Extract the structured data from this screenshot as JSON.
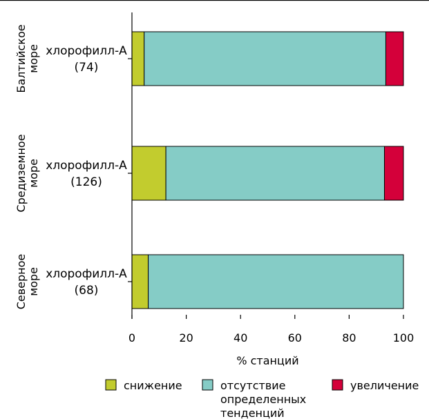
{
  "chart_data": {
    "type": "bar",
    "orientation": "horizontal",
    "stacked": true,
    "rows": [
      {
        "group": "Балтийское море",
        "label": "хлорофилл-А",
        "count": "(74)"
      },
      {
        "group": "Средиземное море",
        "label": "хлорофилл-А",
        "count": "(126)"
      },
      {
        "group": "Северное море",
        "label": "хлорофилл-А",
        "count": "(68)"
      }
    ],
    "series": [
      {
        "name": "снижение",
        "color": "#c2cc2e",
        "values": [
          4.5,
          12.5,
          6
        ]
      },
      {
        "name": "отсутствие определенных тенденций",
        "color": "#85ccc6",
        "values": [
          89,
          80.5,
          94
        ]
      },
      {
        "name": "увеличение",
        "color": "#d4003a",
        "values": [
          6.5,
          7,
          0
        ]
      }
    ],
    "xlabel": "% станций",
    "xlim": [
      0,
      100
    ],
    "xticks": [
      "0",
      "20",
      "40",
      "60",
      "80",
      "100"
    ],
    "legend": {
      "position": "bottom",
      "items": [
        {
          "label_lines": [
            "снижение"
          ]
        },
        {
          "label_lines": [
            "отсутствие",
            "определенных",
            "тенденций"
          ]
        },
        {
          "label_lines": [
            "увеличение"
          ]
        }
      ]
    },
    "grid": false
  }
}
